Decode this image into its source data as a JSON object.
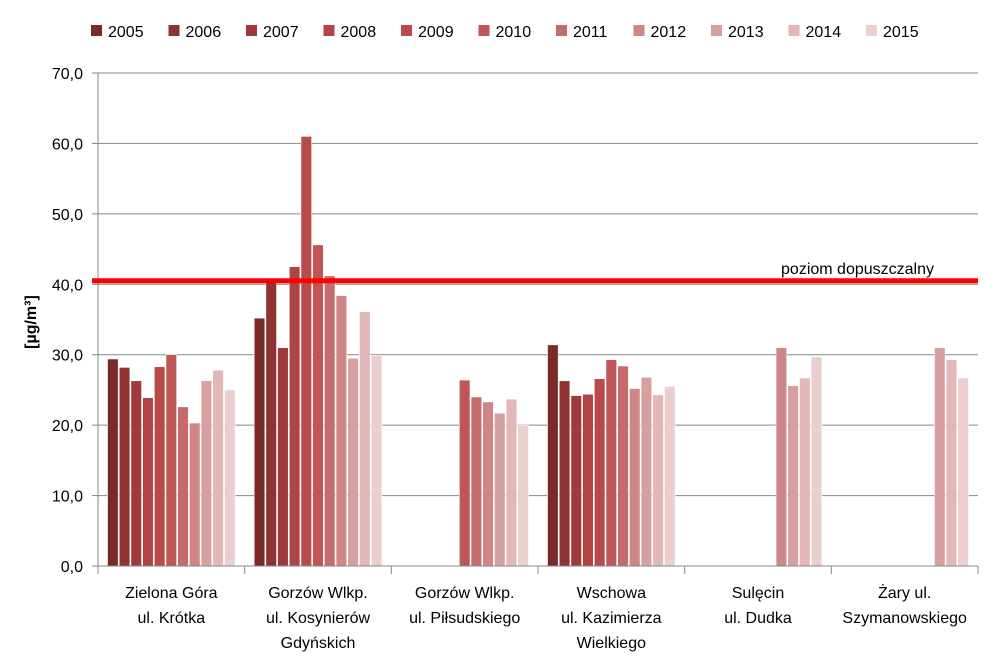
{
  "chart_data": {
    "type": "bar",
    "title": "",
    "ylabel": "[µg/m³]",
    "xlabel": "",
    "ylim": [
      0,
      70
    ],
    "y_ticks": [
      "0,0",
      "10,0",
      "20,0",
      "30,0",
      "40,0",
      "50,0",
      "60,0",
      "70,0"
    ],
    "grid": true,
    "legend_position": "top",
    "categories": [
      [
        "Zielona Góra",
        "ul. Krótka"
      ],
      [
        "Gorzów Wlkp.",
        "ul. Kosynierów",
        "Gdyńskich"
      ],
      [
        "Gorzów Wlkp.",
        "ul. Piłsudskiego"
      ],
      [
        "Wschowa",
        "ul. Kazimierza",
        "Wielkiego"
      ],
      [
        "Sulęcin",
        "ul. Dudka"
      ],
      [
        "Żary ul.",
        "Szymanowskiego"
      ]
    ],
    "series": [
      {
        "name": "2005",
        "color": "#7b2a2a",
        "values": [
          29.4,
          35.2,
          null,
          31.4,
          null,
          null
        ]
      },
      {
        "name": "2006",
        "color": "#8e3232",
        "values": [
          28.2,
          40.3,
          null,
          26.3,
          null,
          null
        ]
      },
      {
        "name": "2007",
        "color": "#a03a3a",
        "values": [
          26.3,
          31.0,
          null,
          24.2,
          null,
          null
        ]
      },
      {
        "name": "2008",
        "color": "#b04444",
        "values": [
          23.9,
          42.5,
          null,
          24.4,
          null,
          null
        ]
      },
      {
        "name": "2009",
        "color": "#b94a4a",
        "values": [
          28.3,
          61.0,
          null,
          26.6,
          null,
          null
        ]
      },
      {
        "name": "2010",
        "color": "#c05555",
        "values": [
          30.0,
          45.6,
          26.4,
          29.3,
          null,
          null
        ]
      },
      {
        "name": "2011",
        "color": "#c56b6b",
        "values": [
          22.6,
          41.2,
          24.0,
          28.4,
          null,
          null
        ]
      },
      {
        "name": "2012",
        "color": "#ce8686",
        "values": [
          20.3,
          38.4,
          23.3,
          25.2,
          31.0,
          null
        ]
      },
      {
        "name": "2013",
        "color": "#d7a0a0",
        "values": [
          26.3,
          29.5,
          21.7,
          26.8,
          25.6,
          31.0
        ]
      },
      {
        "name": "2014",
        "color": "#e1b7b7",
        "values": [
          27.8,
          36.1,
          23.7,
          24.3,
          26.7,
          29.3
        ]
      },
      {
        "name": "2015",
        "color": "#ebcfcf",
        "values": [
          25.0,
          29.9,
          20.0,
          25.5,
          29.7,
          26.7
        ]
      }
    ],
    "extra_2014_sulecin_note": null,
    "reference_line": {
      "label": "poziom dopuszczalny",
      "value": 40.5,
      "color": "#ff0000"
    }
  }
}
